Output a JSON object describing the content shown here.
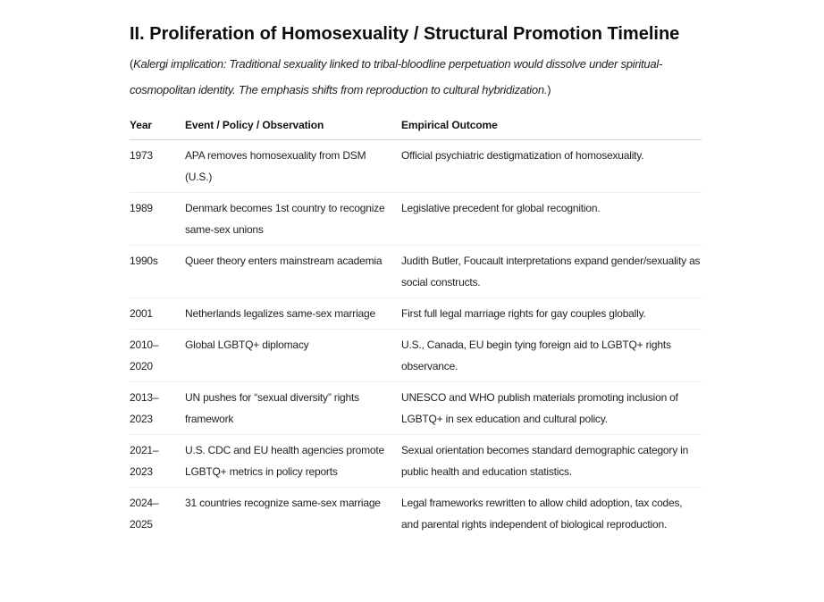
{
  "page": {
    "heading": "II. Proliferation of Homosexuality / Structural Promotion Timeline",
    "note": {
      "open_paren": "(",
      "text": "Kalergi implication: Traditional sexuality linked to tribal-bloodline perpetuation would dissolve under spiritual-cosmopolitan identity. The emphasis shifts from reproduction to cultural hybridization.",
      "close_paren": ")"
    },
    "table": {
      "columns": [
        "Year",
        "Event / Policy / Observation",
        "Empirical Outcome"
      ],
      "rows": [
        {
          "year": "1973",
          "event": "APA removes homosexuality from DSM (U.S.)",
          "outcome": "Official psychiatric destigmatization of homosexuality."
        },
        {
          "year": "1989",
          "event": "Denmark becomes 1st country to recognize same-sex unions",
          "outcome": "Legislative precedent for global recognition."
        },
        {
          "year": "1990s",
          "event": "Queer theory enters mainstream academia",
          "outcome": "Judith Butler, Foucault interpretations expand gender/sexuality as social constructs."
        },
        {
          "year": "2001",
          "event": "Netherlands legalizes same-sex marriage",
          "outcome": "First full legal marriage rights for gay couples globally."
        },
        {
          "year": "2010–2020",
          "event": "Global LGBTQ+ diplomacy",
          "outcome": "U.S., Canada, EU begin tying foreign aid to LGBTQ+ rights observance."
        },
        {
          "year": "2013–2023",
          "event": "UN pushes for “sexual diversity” rights framework",
          "outcome": "UNESCO and WHO publish materials promoting inclusion of LGBTQ+ in sex education and cultural policy."
        },
        {
          "year": "2021–2023",
          "event": "U.S. CDC and EU health agencies promote LGBTQ+ metrics in policy reports",
          "outcome": "Sexual orientation becomes standard demographic category in public health and education statistics."
        },
        {
          "year": "2024–2025",
          "event": "31 countries recognize same-sex marriage",
          "outcome": "Legal frameworks rewritten to allow child adoption, tax codes, and parental rights independent of biological reproduction."
        }
      ]
    },
    "colors": {
      "background": "#ffffff",
      "heading_text": "#0d0d0d",
      "body_text": "#1f1f1f",
      "header_divider": "#d9d9d9",
      "row_divider": "#ededed"
    }
  }
}
